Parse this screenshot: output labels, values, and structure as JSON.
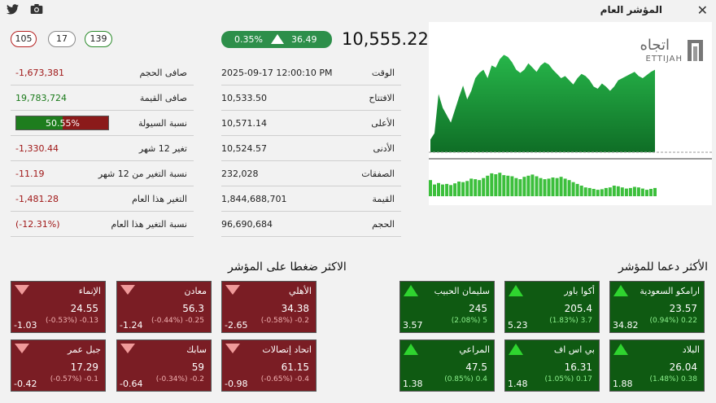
{
  "window": {
    "title": "المؤشر العام",
    "close_icon": "close-icon",
    "twitter_icon": "twitter-icon",
    "camera_icon": "camera-icon"
  },
  "breadth": {
    "declining": "105",
    "unchanged": "17",
    "advancing": "139"
  },
  "index": {
    "value": "10,555.22",
    "change_pct": "0.35%",
    "change_pts": "36.49",
    "direction": "up"
  },
  "details": [
    {
      "label": "الوقت",
      "value": "2025-09-17  12:00:10 PM"
    },
    {
      "label": "الافتتاح",
      "value": "10,533.50"
    },
    {
      "label": "الأعلى",
      "value": "10,571.14"
    },
    {
      "label": "الأدنى",
      "value": "10,524.57"
    },
    {
      "label": "الصفقات",
      "value": "232,028"
    },
    {
      "label": "القيمة",
      "value": "1,844,688,701"
    },
    {
      "label": "الحجم",
      "value": "96,690,684"
    }
  ],
  "stats": [
    {
      "label": "صافى الحجم",
      "value": "-1,673,381",
      "tone": "neg"
    },
    {
      "label": "صافى القيمة",
      "value": "19,783,724",
      "tone": "pos"
    },
    {
      "label": "نسبة السيولة",
      "value": "50.55%",
      "fraction": 0.5055
    },
    {
      "label": "تغير 12 شهر",
      "value": "-1,330.44",
      "tone": "neg"
    },
    {
      "label": "نسبة التغير من 12 شهر",
      "value": "-11.19",
      "tone": "neg"
    },
    {
      "label": "التغير هذا العام",
      "value": "-1,481.28",
      "tone": "neg"
    },
    {
      "label": "نسبة التغير هذا العام",
      "value": "(-12.31%)",
      "tone": "neg"
    }
  ],
  "logo": {
    "arabic": "اتجاه",
    "latin": "ETTIJAH"
  },
  "colors": {
    "up": "#0f5a12",
    "down": "#7a1d24",
    "accent": "#2d8f4a",
    "chart_green": "#1fa23a"
  },
  "supporters": {
    "title": "الأكثر دعما للمؤشر",
    "items": [
      {
        "name": "ارامكو السعودية",
        "price": "23.57",
        "change": "(0.94%) 0.22",
        "points": "34.82"
      },
      {
        "name": "أكوا باور",
        "price": "205.4",
        "change": "(1.83%) 3.7",
        "points": "5.23"
      },
      {
        "name": "سليمان الحبيب",
        "price": "245",
        "change": "(2.08%) 5",
        "points": "3.57"
      },
      {
        "name": "البلاد",
        "price": "26.04",
        "change": "(1.48%) 0.38",
        "points": "1.88"
      },
      {
        "name": "بي اس اف",
        "price": "16.31",
        "change": "(1.05%) 0.17",
        "points": "1.48"
      },
      {
        "name": "المراعي",
        "price": "47.5",
        "change": "(0.85%) 0.4",
        "points": "1.38"
      }
    ]
  },
  "pressure": {
    "title": "الاكثر ضغطا على المؤشر",
    "items": [
      {
        "name": "الأهلي",
        "price": "34.38",
        "change": "(-0.58%) -0.2",
        "points": "-2.65"
      },
      {
        "name": "معادن",
        "price": "56.3",
        "change": "(-0.44%) -0.25",
        "points": "-1.24"
      },
      {
        "name": "الإنماء",
        "price": "24.55",
        "change": "(-0.53%) -0.13",
        "points": "-1.03"
      },
      {
        "name": "اتحاد إتصالات",
        "price": "61.15",
        "change": "(-0.65%) -0.4",
        "points": "-0.98"
      },
      {
        "name": "سابك",
        "price": "59",
        "change": "(-0.34%) -0.2",
        "points": "-0.64"
      },
      {
        "name": "جبل عمر",
        "price": "17.29",
        "change": "(-0.57%) -0.1",
        "points": "-0.42"
      }
    ]
  },
  "chart_data": {
    "type": "area",
    "price_series": [
      0.12,
      0.18,
      0.55,
      0.42,
      0.35,
      0.28,
      0.4,
      0.52,
      0.63,
      0.5,
      0.58,
      0.7,
      0.75,
      0.78,
      0.7,
      0.82,
      0.8,
      0.88,
      0.92,
      0.9,
      0.85,
      0.78,
      0.75,
      0.78,
      0.84,
      0.8,
      0.76,
      0.82,
      0.85,
      0.83,
      0.78,
      0.74,
      0.7,
      0.72,
      0.68,
      0.64,
      0.7,
      0.74,
      0.72,
      0.68,
      0.62,
      0.6,
      0.65,
      0.62,
      0.58,
      0.62,
      0.68,
      0.7,
      0.72,
      0.74,
      0.76,
      0.72,
      0.7,
      0.73,
      0.76,
      0.78
    ],
    "volume_series": [
      0.55,
      0.4,
      0.45,
      0.4,
      0.42,
      0.38,
      0.44,
      0.5,
      0.48,
      0.52,
      0.6,
      0.58,
      0.55,
      0.62,
      0.7,
      0.78,
      0.75,
      0.8,
      0.72,
      0.7,
      0.68,
      0.62,
      0.58,
      0.66,
      0.7,
      0.74,
      0.68,
      0.62,
      0.58,
      0.6,
      0.64,
      0.62,
      0.66,
      0.6,
      0.55,
      0.48,
      0.42,
      0.36,
      0.3,
      0.28,
      0.25,
      0.22,
      0.24,
      0.28,
      0.3,
      0.36,
      0.34,
      0.3,
      0.26,
      0.28,
      0.32,
      0.3,
      0.26,
      0.22,
      0.25,
      0.28
    ]
  }
}
